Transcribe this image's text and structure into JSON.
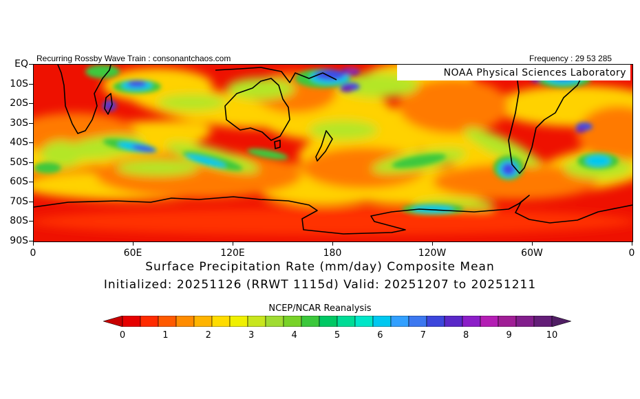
{
  "header": {
    "left": "Recurring Rossby Wave Train : consonantchaos.com",
    "right": "Frequency : 29 53 285"
  },
  "watermark": "NOAA  Physical  Sciences  Laboratory",
  "map": {
    "variable": "Surface Precipitation Rate",
    "projection": "equirectangular",
    "lon_range": [
      0,
      360
    ],
    "lat_range": [
      -90,
      0
    ],
    "lat_labels": [
      "EQ",
      "10S",
      "20S",
      "30S",
      "40S",
      "50S",
      "60S",
      "70S",
      "80S",
      "90S"
    ],
    "lon_labels": [
      "0",
      "60E",
      "120E",
      "180",
      "120W",
      "60W",
      "0"
    ]
  },
  "title": {
    "line1": "Surface Precipitation Rate (mm/day) Composite Mean",
    "line2": "Initialized: 20251126 (RRWT 1115d) Valid: 20251207 to 20251211"
  },
  "source": "NCEP/NCAR Reanalysis",
  "colorbar": {
    "labels": [
      "0",
      "1",
      "2",
      "3",
      "4",
      "5",
      "6",
      "7",
      "8",
      "9",
      "10"
    ],
    "colors": [
      "#e60000",
      "#ff2b00",
      "#ff5a00",
      "#ff8c00",
      "#ffb400",
      "#ffdc00",
      "#f0f000",
      "#c8e61e",
      "#a0dc32",
      "#78d228",
      "#3cc83c",
      "#00c864",
      "#00dc96",
      "#00e6c8",
      "#00c8f0",
      "#32a0ff",
      "#3c78f0",
      "#3c46dc",
      "#5a28c8",
      "#8c1ec8",
      "#b41eb4",
      "#a01e96",
      "#821e8c",
      "#641e78"
    ],
    "under_color": "#c80000",
    "over_color": "#501e64"
  }
}
